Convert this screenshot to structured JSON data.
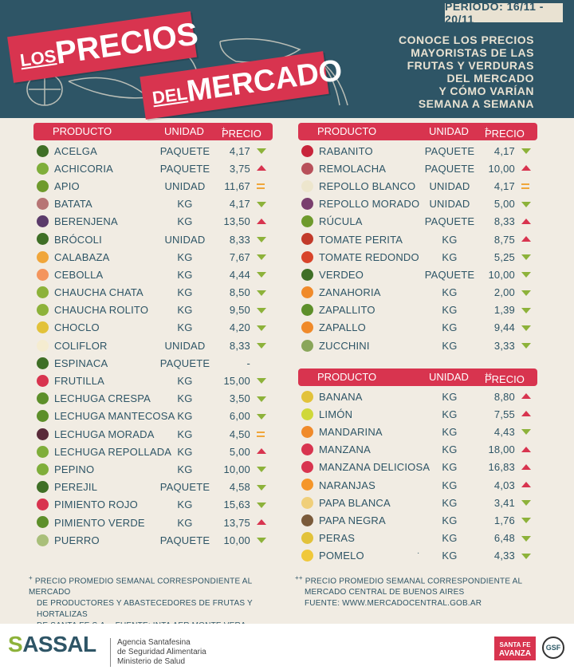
{
  "period": "PERIODO: 16/11 - 20/11",
  "title": {
    "pre": "LOS",
    "main1": "PRECIOS",
    "pre2": "DEL",
    "main2": "MERCADO"
  },
  "subtitle": [
    "CONOCE LOS PRECIOS",
    "MAYORISTAS DE LAS",
    "FRUTAS Y VERDURAS",
    "DEL MERCADO",
    "Y CÓMO VARÍAN",
    "SEMANA A SEMANA"
  ],
  "headers": {
    "product": "PRODUCTO",
    "unit": "UNIDAD",
    "price": "PRECIO",
    "mark1": "+",
    "mark2": "++"
  },
  "colors": {
    "red": "#d8344f",
    "green": "#8db23a",
    "orange": "#f0a63a",
    "navy": "#2e5566"
  },
  "table1": [
    {
      "name": "ACELGA",
      "unit": "PAQUETE",
      "price": "4,17",
      "trend": "down",
      "color": "#3f6f26"
    },
    {
      "name": "ACHICORIA",
      "unit": "PAQUETE",
      "price": "3,75",
      "trend": "up",
      "color": "#7fae3a"
    },
    {
      "name": "APIO",
      "unit": "UNIDAD",
      "price": "11,67",
      "trend": "eq",
      "color": "#6e9a2c"
    },
    {
      "name": "BATATA",
      "unit": "KG",
      "price": "4,17",
      "trend": "down",
      "color": "#b77575"
    },
    {
      "name": "BERENJENA",
      "unit": "KG",
      "price": "13,50",
      "trend": "up",
      "color": "#5b3b6b"
    },
    {
      "name": "BRÓCOLI",
      "unit": "UNIDAD",
      "price": "8,33",
      "trend": "down",
      "color": "#3f6f26"
    },
    {
      "name": "CALABAZA",
      "unit": "KG",
      "price": "7,67",
      "trend": "down",
      "color": "#f0a63a"
    },
    {
      "name": "CEBOLLA",
      "unit": "KG",
      "price": "4,44",
      "trend": "down",
      "color": "#f4955d"
    },
    {
      "name": "CHAUCHA CHATA",
      "unit": "KG",
      "price": "8,50",
      "trend": "down",
      "color": "#8db23a"
    },
    {
      "name": "CHAUCHA ROLITO",
      "unit": "KG",
      "price": "9,50",
      "trend": "down",
      "color": "#8db23a"
    },
    {
      "name": "CHOCLO",
      "unit": "KG",
      "price": "4,20",
      "trend": "down",
      "color": "#e2c23a"
    },
    {
      "name": "COLIFLOR",
      "unit": "UNIDAD",
      "price": "8,33",
      "trend": "down",
      "color": "#f5ecd0"
    },
    {
      "name": "ESPINACA",
      "unit": "PAQUETE",
      "price": "-",
      "trend": "none",
      "color": "#3f6f26"
    },
    {
      "name": "FRUTILLA",
      "unit": "KG",
      "price": "15,00",
      "trend": "down",
      "color": "#d8344f"
    },
    {
      "name": "LECHUGA CRESPA",
      "unit": "KG",
      "price": "3,50",
      "trend": "down",
      "color": "#5d8f2a"
    },
    {
      "name": "LECHUGA MANTECOSA",
      "unit": "KG",
      "price": "6,00",
      "trend": "down",
      "color": "#5d8f2a"
    },
    {
      "name": "LECHUGA MORADA",
      "unit": "KG",
      "price": "4,50",
      "trend": "eq",
      "color": "#5a2b3a"
    },
    {
      "name": "LECHUGA REPOLLADA",
      "unit": "KG",
      "price": "5,00",
      "trend": "up",
      "color": "#7fae3a"
    },
    {
      "name": "PEPINO",
      "unit": "KG",
      "price": "10,00",
      "trend": "down",
      "color": "#7fae3a"
    },
    {
      "name": "PEREJIL",
      "unit": "PAQUETE",
      "price": "4,58",
      "trend": "down",
      "color": "#3f6f26"
    },
    {
      "name": "PIMIENTO ROJO",
      "unit": "KG",
      "price": "15,63",
      "trend": "down",
      "color": "#d8344f"
    },
    {
      "name": "PIMIENTO VERDE",
      "unit": "KG",
      "price": "13,75",
      "trend": "up",
      "color": "#5d8f2a"
    },
    {
      "name": "PUERRO",
      "unit": "PAQUETE",
      "price": "10,00",
      "trend": "down",
      "color": "#a9bf7a"
    }
  ],
  "table2": [
    {
      "name": "RABANITO",
      "unit": "PAQUETE",
      "price": "4,17",
      "trend": "down",
      "color": "#c8243a"
    },
    {
      "name": "REMOLACHA",
      "unit": "PAQUETE",
      "price": "10,00",
      "trend": "up",
      "color": "#b8505a"
    },
    {
      "name": "REPOLLO BLANCO",
      "unit": "UNIDAD",
      "price": "4,17",
      "trend": "eq",
      "color": "#ede6cd"
    },
    {
      "name": "REPOLLO MORADO",
      "unit": "UNIDAD",
      "price": "5,00",
      "trend": "down",
      "color": "#7a3f6e"
    },
    {
      "name": "RÚCULA",
      "unit": "PAQUETE",
      "price": "8,33",
      "trend": "up",
      "color": "#6e9a2c"
    },
    {
      "name": "TOMATE PERITA",
      "unit": "KG",
      "price": "8,75",
      "trend": "up",
      "color": "#c23a2a"
    },
    {
      "name": "TOMATE REDONDO",
      "unit": "KG",
      "price": "5,25",
      "trend": "down",
      "color": "#d8442a"
    },
    {
      "name": "VERDEO",
      "unit": "PAQUETE",
      "price": "10,00",
      "trend": "down",
      "color": "#3f6f26"
    },
    {
      "name": "ZANAHORIA",
      "unit": "KG",
      "price": "2,00",
      "trend": "down",
      "color": "#f08a2a"
    },
    {
      "name": "ZAPALLITO",
      "unit": "KG",
      "price": "1,39",
      "trend": "down",
      "color": "#5d8f2a"
    },
    {
      "name": "ZAPALLO",
      "unit": "KG",
      "price": "9,44",
      "trend": "down",
      "color": "#f08a2a"
    },
    {
      "name": "ZUCCHINI",
      "unit": "KG",
      "price": "3,33",
      "trend": "down",
      "color": "#8aa65a"
    }
  ],
  "table3": [
    {
      "name": "BANANA",
      "unit": "KG",
      "price": "8,80",
      "trend": "up",
      "color": "#e2c23a"
    },
    {
      "name": "LIMÓN",
      "unit": "KG",
      "price": "7,55",
      "trend": "up",
      "color": "#cfd83a"
    },
    {
      "name": "MANDARINA",
      "unit": "KG",
      "price": "4,43",
      "trend": "down",
      "color": "#f08a2a"
    },
    {
      "name": "MANZANA",
      "unit": "KG",
      "price": "18,00",
      "trend": "up",
      "color": "#d8344f"
    },
    {
      "name": "MANZANA DELICIOSA",
      "unit": "KG",
      "price": "16,83",
      "trend": "up",
      "color": "#d8344f"
    },
    {
      "name": "NARANJAS",
      "unit": "KG",
      "price": "4,03",
      "trend": "up",
      "color": "#f5962a"
    },
    {
      "name": "PAPA BLANCA",
      "unit": "KG",
      "price": "3,41",
      "trend": "down",
      "color": "#f0cf7a"
    },
    {
      "name": "PAPA NEGRA",
      "unit": "KG",
      "price": "1,76",
      "trend": "down",
      "color": "#7a5a3a"
    },
    {
      "name": "PERAS",
      "unit": "KG",
      "price": "6,48",
      "trend": "down",
      "color": "#e2c23a"
    },
    {
      "name": "POMELO",
      "unit": "KG",
      "price": "4,33",
      "trend": "down",
      "color": "#f0c83a"
    }
  ],
  "stray_mark": "·",
  "footnote1": [
    "PRECIO PROMEDIO SEMANAL CORRESPONDIENTE AL MERCADO",
    "DE PRODUCTORES Y ABASTECEDORES DE FRUTAS Y HORTALIZAS",
    "DE SANTA FE S.A. - FUENTE: INTA AER MONTE VERA"
  ],
  "footnote2": [
    "PRECIO PROMEDIO SEMANAL CORRESPONDIENTE AL",
    "MERCADO CENTRAL DE BUENOS AIRES",
    "FUENTE: WWW.MERCADOCENTRAL.GOB.AR"
  ],
  "footer": {
    "assal": "ASSAL",
    "agency": [
      "Agencia Santafesina",
      "de Seguridad Alimentaria",
      "Ministerio de Salud"
    ],
    "santafe": [
      "SANTA FE",
      "AVANZA"
    ],
    "gsf": "GSF"
  }
}
